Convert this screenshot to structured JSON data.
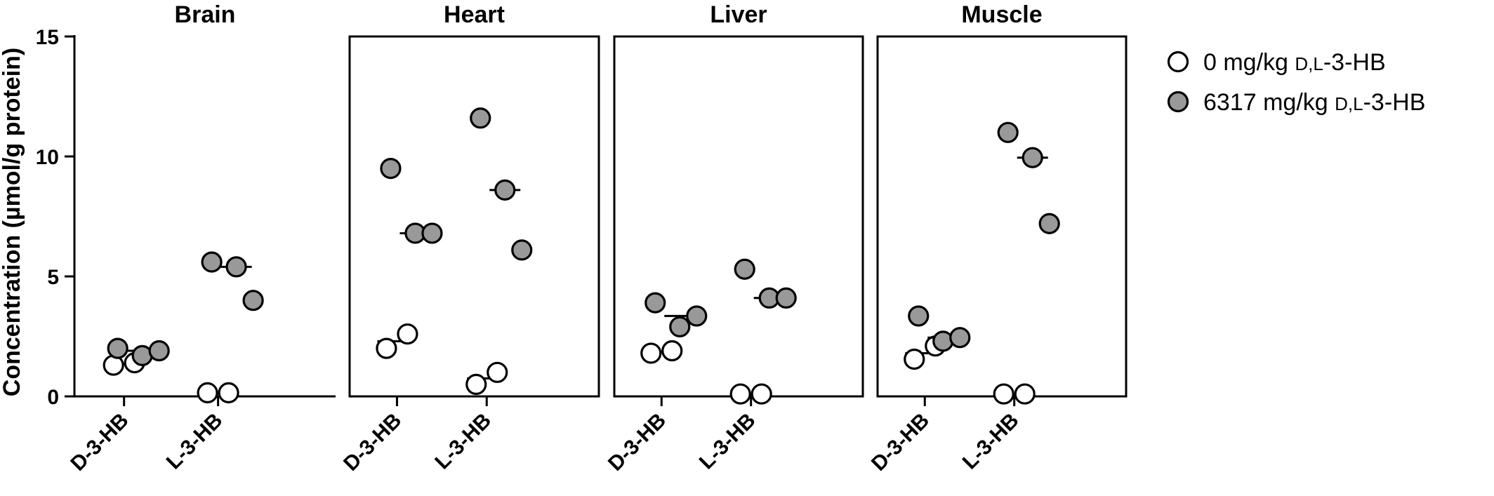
{
  "chart_data": {
    "type": "scatter",
    "ylabel": "Concentration (µmol/g protein)",
    "ylim": [
      0,
      15
    ],
    "yticks": [
      "0",
      "5",
      "10",
      "15"
    ],
    "categories": [
      "D-3-HB",
      "L-3-HB"
    ],
    "legend": {
      "placement": "right",
      "entries": [
        {
          "pre": "0 mg/kg ",
          "sc": "D,L",
          "post": "-3-HB",
          "fill": "#ffffff"
        },
        {
          "pre": "6317 mg/kg ",
          "sc": "D,L",
          "post": "-3-HB",
          "fill": "#999999"
        }
      ]
    },
    "series": [
      {
        "name": "0 mg/kg D,L-3-HB",
        "color": "#ffffff"
      },
      {
        "name": "6317 mg/kg D,L-3-HB",
        "color": "#999999"
      }
    ],
    "panels": [
      {
        "title": "Brain",
        "groups": [
          {
            "category": "D-3-HB",
            "series": 0,
            "points": [
              1.3,
              1.4
            ],
            "median": 1.35
          },
          {
            "category": "D-3-HB",
            "series": 1,
            "points": [
              2.0,
              1.7,
              1.9
            ],
            "median": 1.9
          },
          {
            "category": "L-3-HB",
            "series": 0,
            "points": [
              0.15,
              0.15
            ],
            "median": 0.15
          },
          {
            "category": "L-3-HB",
            "series": 1,
            "points": [
              5.6,
              5.4,
              4.0
            ],
            "median": 5.4
          }
        ]
      },
      {
        "title": "Heart",
        "groups": [
          {
            "category": "D-3-HB",
            "series": 0,
            "points": [
              2.0,
              2.6
            ],
            "median": 2.3
          },
          {
            "category": "D-3-HB",
            "series": 1,
            "points": [
              9.5,
              6.8,
              6.8
            ],
            "median": 6.8
          },
          {
            "category": "L-3-HB",
            "series": 0,
            "points": [
              0.5,
              1.0
            ],
            "median": 0.75
          },
          {
            "category": "L-3-HB",
            "series": 1,
            "points": [
              11.6,
              8.6,
              6.1
            ],
            "median": 8.6
          }
        ]
      },
      {
        "title": "Liver",
        "groups": [
          {
            "category": "D-3-HB",
            "series": 0,
            "points": [
              1.8,
              1.9
            ],
            "median": 1.85
          },
          {
            "category": "D-3-HB",
            "series": 1,
            "points": [
              3.9,
              2.9,
              3.35
            ],
            "median": 3.35
          },
          {
            "category": "L-3-HB",
            "series": 0,
            "points": [
              0.1,
              0.1
            ],
            "median": 0.1
          },
          {
            "category": "L-3-HB",
            "series": 1,
            "points": [
              5.3,
              4.1,
              4.1
            ],
            "median": 4.1
          }
        ]
      },
      {
        "title": "Muscle",
        "groups": [
          {
            "category": "D-3-HB",
            "series": 0,
            "points": [
              1.55,
              2.1
            ],
            "median": 1.8
          },
          {
            "category": "D-3-HB",
            "series": 1,
            "points": [
              3.35,
              2.3,
              2.45
            ],
            "median": 2.45
          },
          {
            "category": "L-3-HB",
            "series": 0,
            "points": [
              0.1,
              0.1
            ],
            "median": 0.1
          },
          {
            "category": "L-3-HB",
            "series": 1,
            "points": [
              11.0,
              9.95,
              7.2
            ],
            "median": 9.95
          }
        ]
      }
    ]
  }
}
